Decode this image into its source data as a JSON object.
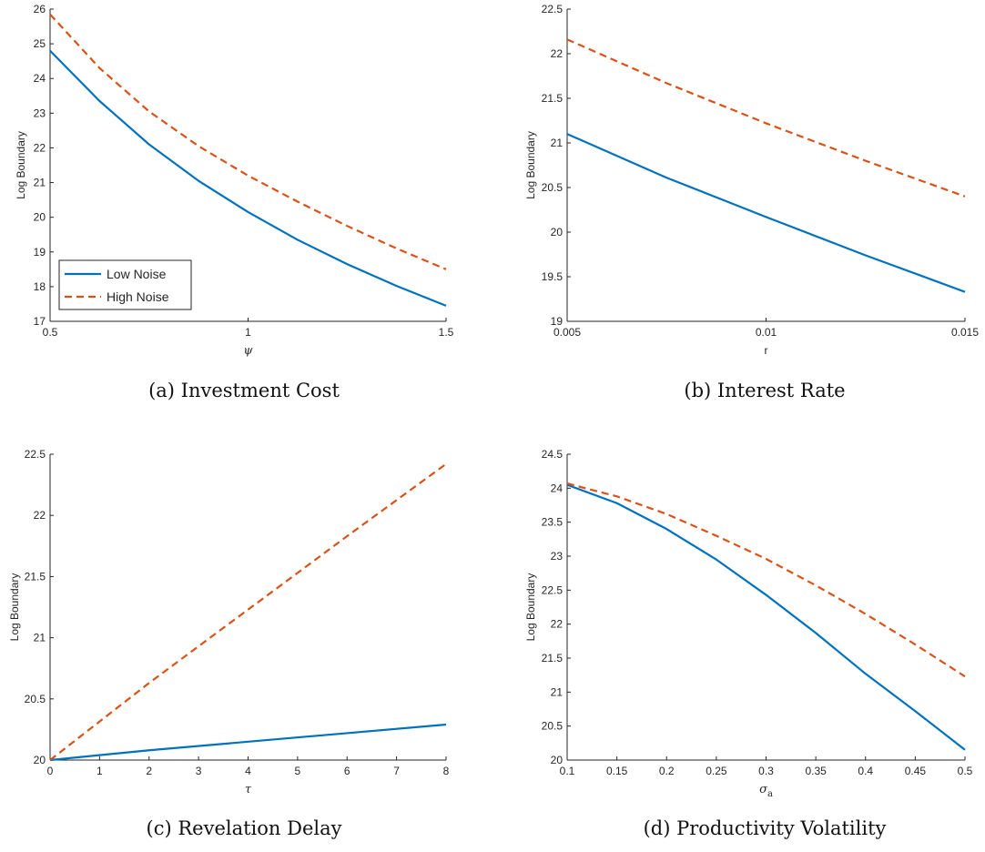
{
  "colors": {
    "low": "#0072BD",
    "high": "#D95319",
    "axis": "#262626"
  },
  "chart_data": [
    {
      "type": "line",
      "caption": "(a) Investment Cost",
      "xlabel": "ψ",
      "ylabel": "Log Boundary",
      "xlim": [
        0.5,
        1.5
      ],
      "ylim": [
        17,
        26
      ],
      "xticks": [
        0.5,
        1,
        1.5
      ],
      "xticklabels": [
        "0.5",
        "1",
        "1.5"
      ],
      "yticks": [
        17,
        18,
        19,
        20,
        21,
        22,
        23,
        24,
        25,
        26
      ],
      "yticklabels": [
        "17",
        "18",
        "19",
        "20",
        "21",
        "22",
        "23",
        "24",
        "25",
        "26"
      ],
      "legend": {
        "placement": "bottom-left",
        "entries": [
          "Low Noise",
          "High Noise"
        ]
      },
      "x": [
        0.5,
        0.625,
        0.75,
        0.875,
        1.0,
        1.125,
        1.25,
        1.375,
        1.5
      ],
      "series": [
        {
          "name": "Low Noise",
          "style": "solid",
          "values": [
            24.8,
            23.35,
            22.1,
            21.05,
            20.15,
            19.35,
            18.65,
            18.02,
            17.45
          ]
        },
        {
          "name": "High Noise",
          "style": "dashed",
          "values": [
            25.85,
            24.3,
            23.05,
            22.05,
            21.2,
            20.45,
            19.75,
            19.1,
            18.5
          ]
        }
      ]
    },
    {
      "type": "line",
      "caption": "(b) Interest Rate",
      "xlabel": "r",
      "ylabel": "Log Boundary",
      "xlim": [
        0.005,
        0.015
      ],
      "ylim": [
        19,
        22.5
      ],
      "xticks": [
        0.005,
        0.01,
        0.015
      ],
      "xticklabels": [
        "0.005",
        "0.01",
        "0.015"
      ],
      "yticks": [
        19,
        19.5,
        20,
        20.5,
        21,
        21.5,
        22,
        22.5
      ],
      "yticklabels": [
        "19",
        "19.5",
        "20",
        "20.5",
        "21",
        "21.5",
        "22",
        "22.5"
      ],
      "x": [
        0.005,
        0.0075,
        0.01,
        0.0125,
        0.015
      ],
      "series": [
        {
          "name": "Low Noise",
          "style": "solid",
          "values": [
            21.1,
            20.61,
            20.17,
            19.74,
            19.33
          ]
        },
        {
          "name": "High Noise",
          "style": "dashed",
          "values": [
            22.16,
            21.67,
            21.22,
            20.8,
            20.4
          ]
        }
      ]
    },
    {
      "type": "line",
      "caption": "(c) Revelation Delay",
      "xlabel": "τ",
      "ylabel": "Log Boundary",
      "xlim": [
        0,
        8
      ],
      "ylim": [
        20,
        22.5
      ],
      "xticks": [
        0,
        1,
        2,
        3,
        4,
        5,
        6,
        7,
        8
      ],
      "xticklabels": [
        "0",
        "1",
        "2",
        "3",
        "4",
        "5",
        "6",
        "7",
        "8"
      ],
      "yticks": [
        20,
        20.5,
        21,
        21.5,
        22,
        22.5
      ],
      "yticklabels": [
        "20",
        "20.5",
        "21",
        "21.5",
        "22",
        "22.5"
      ],
      "x": [
        0,
        2,
        4,
        6,
        8
      ],
      "series": [
        {
          "name": "Low Noise",
          "style": "solid",
          "values": [
            20.0,
            20.08,
            20.15,
            20.22,
            20.29
          ]
        },
        {
          "name": "High Noise",
          "style": "dashed",
          "values": [
            20.0,
            20.63,
            21.23,
            21.83,
            22.42
          ]
        }
      ]
    },
    {
      "type": "line",
      "caption": "(d) Productivity Volatility",
      "xlabel": "σ",
      "xlabel_sub": "a",
      "ylabel": "Log Boundary",
      "xlim": [
        0.1,
        0.5
      ],
      "ylim": [
        20,
        24.5
      ],
      "xticks": [
        0.1,
        0.15,
        0.2,
        0.25,
        0.3,
        0.35,
        0.4,
        0.45,
        0.5
      ],
      "xticklabels": [
        "0.1",
        "0.15",
        "0.2",
        "0.25",
        "0.3",
        "0.35",
        "0.4",
        "0.45",
        "0.5"
      ],
      "yticks": [
        20,
        20.5,
        21,
        21.5,
        22,
        22.5,
        23,
        23.5,
        24,
        24.5
      ],
      "yticklabels": [
        "20",
        "20.5",
        "21",
        "21.5",
        "22",
        "22.5",
        "23",
        "23.5",
        "24",
        "24.5"
      ],
      "x": [
        0.1,
        0.15,
        0.2,
        0.25,
        0.3,
        0.35,
        0.4,
        0.45,
        0.5
      ],
      "series": [
        {
          "name": "Low Noise",
          "style": "solid",
          "values": [
            24.05,
            23.78,
            23.4,
            22.95,
            22.43,
            21.87,
            21.27,
            20.72,
            20.15
          ]
        },
        {
          "name": "High Noise",
          "style": "dashed",
          "values": [
            24.07,
            23.88,
            23.62,
            23.3,
            22.96,
            22.57,
            22.15,
            21.7,
            21.23
          ]
        }
      ]
    }
  ]
}
